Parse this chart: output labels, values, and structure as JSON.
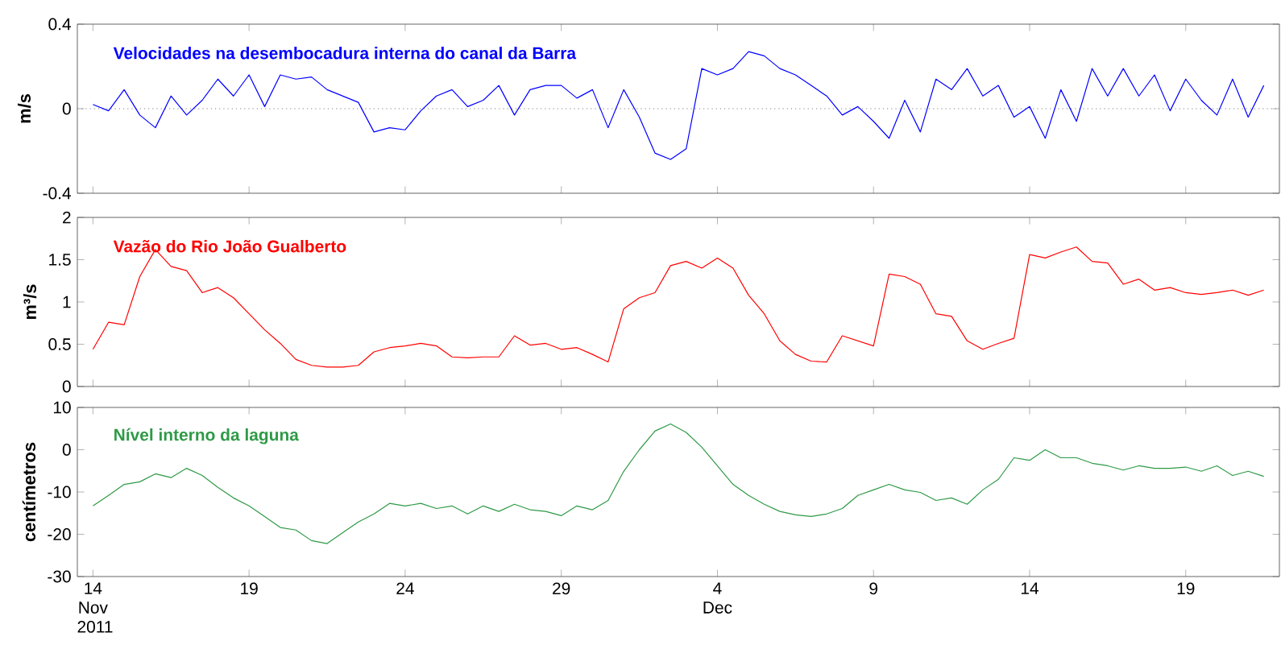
{
  "chart_data": [
    {
      "type": "line",
      "title": "Velocidades na desembocadura interna do canal da Barra",
      "ylabel": "m/s",
      "tick_labels": "y",
      "xlim": [
        "2011-11-13T12:00",
        "2011-12-22T00:00"
      ],
      "ylim": [
        -0.4,
        0.4
      ],
      "yticks": [
        -0.4,
        0,
        0.4
      ],
      "xticks": [
        {
          "value": "2011-11-14",
          "label": null
        },
        {
          "value": "2011-11-19",
          "label": null
        },
        {
          "value": "2011-11-24",
          "label": null
        },
        {
          "value": "2011-11-29",
          "label": null
        },
        {
          "value": "2011-12-04",
          "label": null
        },
        {
          "value": "2011-12-09",
          "label": null
        },
        {
          "value": "2011-12-14",
          "label": null
        },
        {
          "value": "2011-12-19",
          "label": null
        }
      ],
      "ref_lines": [
        {
          "axis": "y",
          "value": 0,
          "color": "#808080",
          "line_style": "dotted"
        }
      ],
      "x": [
        "2011-11-14T00:00",
        "2011-11-14T12:00",
        "2011-11-15T00:00",
        "2011-11-15T12:00",
        "2011-11-16T00:00",
        "2011-11-16T12:00",
        "2011-11-17T00:00",
        "2011-11-17T12:00",
        "2011-11-18T00:00",
        "2011-11-18T12:00",
        "2011-11-19T00:00",
        "2011-11-19T12:00",
        "2011-11-20T00:00",
        "2011-11-20T12:00",
        "2011-11-21T00:00",
        "2011-11-21T12:00",
        "2011-11-22T00:00",
        "2011-11-22T12:00",
        "2011-11-23T00:00",
        "2011-11-23T12:00",
        "2011-11-24T00:00",
        "2011-11-24T12:00",
        "2011-11-25T00:00",
        "2011-11-25T12:00",
        "2011-11-26T00:00",
        "2011-11-26T12:00",
        "2011-11-27T00:00",
        "2011-11-27T12:00",
        "2011-11-28T00:00",
        "2011-11-28T12:00",
        "2011-11-29T00:00",
        "2011-11-29T12:00",
        "2011-11-30T00:00",
        "2011-11-30T12:00",
        "2011-12-01T00:00",
        "2011-12-01T12:00",
        "2011-12-02T00:00",
        "2011-12-02T12:00",
        "2011-12-03T00:00",
        "2011-12-03T12:00",
        "2011-12-04T00:00",
        "2011-12-04T12:00",
        "2011-12-05T00:00",
        "2011-12-05T12:00",
        "2011-12-06T00:00",
        "2011-12-06T12:00",
        "2011-12-07T00:00",
        "2011-12-07T12:00",
        "2011-12-08T00:00",
        "2011-12-08T12:00",
        "2011-12-09T00:00",
        "2011-12-09T12:00",
        "2011-12-10T00:00",
        "2011-12-10T12:00",
        "2011-12-11T00:00",
        "2011-12-11T12:00",
        "2011-12-12T00:00",
        "2011-12-12T12:00",
        "2011-12-13T00:00",
        "2011-12-13T12:00",
        "2011-12-14T00:00",
        "2011-12-14T12:00",
        "2011-12-15T00:00",
        "2011-12-15T12:00",
        "2011-12-16T00:00",
        "2011-12-16T12:00",
        "2011-12-17T00:00",
        "2011-12-17T12:00",
        "2011-12-18T00:00",
        "2011-12-18T12:00",
        "2011-12-19T00:00",
        "2011-12-19T12:00",
        "2011-12-20T00:00",
        "2011-12-20T12:00",
        "2011-12-21T00:00",
        "2011-12-21T12:00"
      ],
      "series": [
        {
          "color": "#0000ff",
          "values": [
            0.02,
            -0.01,
            0.09,
            -0.03,
            -0.09,
            0.06,
            -0.03,
            0.04,
            0.14,
            0.06,
            0.16,
            0.01,
            0.16,
            0.14,
            0.15,
            0.09,
            0.06,
            0.03,
            -0.11,
            -0.09,
            -0.1,
            -0.01,
            0.06,
            0.09,
            0.01,
            0.04,
            0.11,
            -0.03,
            0.09,
            0.11,
            0.11,
            0.05,
            0.09,
            -0.09,
            0.09,
            -0.04,
            -0.21,
            -0.24,
            -0.19,
            0.19,
            0.16,
            0.19,
            0.27,
            0.25,
            0.19,
            0.16,
            0.11,
            0.06,
            -0.03,
            0.01,
            -0.06,
            -0.14,
            0.04,
            -0.11,
            0.14,
            0.09,
            0.19,
            0.06,
            0.11,
            -0.04,
            0.01,
            -0.14,
            0.09,
            -0.06,
            0.19,
            0.06,
            0.19,
            0.06,
            0.16,
            -0.01,
            0.14,
            0.04,
            -0.03,
            0.14,
            -0.04,
            0.11
          ]
        }
      ]
    },
    {
      "type": "line",
      "title": "Vazão do Rio João Gualberto",
      "ylabel": "m³/s",
      "tick_labels": "y",
      "xlim": [
        "2011-11-13T12:00",
        "2011-12-22T00:00"
      ],
      "ylim": [
        0,
        2
      ],
      "yticks": [
        0,
        0.5,
        1,
        1.5,
        2
      ],
      "xticks": [
        {
          "value": "2011-11-14",
          "label": null
        },
        {
          "value": "2011-11-19",
          "label": null
        },
        {
          "value": "2011-11-24",
          "label": null
        },
        {
          "value": "2011-11-29",
          "label": null
        },
        {
          "value": "2011-12-04",
          "label": null
        },
        {
          "value": "2011-12-09",
          "label": null
        },
        {
          "value": "2011-12-14",
          "label": null
        },
        {
          "value": "2011-12-19",
          "label": null
        }
      ],
      "x": [
        "2011-11-14T00:00",
        "2011-11-14T12:00",
        "2011-11-15T00:00",
        "2011-11-15T12:00",
        "2011-11-16T00:00",
        "2011-11-16T12:00",
        "2011-11-17T00:00",
        "2011-11-17T12:00",
        "2011-11-18T00:00",
        "2011-11-18T12:00",
        "2011-11-19T00:00",
        "2011-11-19T12:00",
        "2011-11-20T00:00",
        "2011-11-20T12:00",
        "2011-11-21T00:00",
        "2011-11-21T12:00",
        "2011-11-22T00:00",
        "2011-11-22T12:00",
        "2011-11-23T00:00",
        "2011-11-23T12:00",
        "2011-11-24T00:00",
        "2011-11-24T12:00",
        "2011-11-25T00:00",
        "2011-11-25T12:00",
        "2011-11-26T00:00",
        "2011-11-26T12:00",
        "2011-11-27T00:00",
        "2011-11-27T12:00",
        "2011-11-28T00:00",
        "2011-11-28T12:00",
        "2011-11-29T00:00",
        "2011-11-29T12:00",
        "2011-11-30T00:00",
        "2011-11-30T12:00",
        "2011-12-01T00:00",
        "2011-12-01T12:00",
        "2011-12-02T00:00",
        "2011-12-02T12:00",
        "2011-12-03T00:00",
        "2011-12-03T12:00",
        "2011-12-04T00:00",
        "2011-12-04T12:00",
        "2011-12-05T00:00",
        "2011-12-05T12:00",
        "2011-12-06T00:00",
        "2011-12-06T12:00",
        "2011-12-07T00:00",
        "2011-12-07T12:00",
        "2011-12-08T00:00",
        "2011-12-08T12:00",
        "2011-12-09T00:00",
        "2011-12-09T12:00",
        "2011-12-10T00:00",
        "2011-12-10T12:00",
        "2011-12-11T00:00",
        "2011-12-11T12:00",
        "2011-12-12T00:00",
        "2011-12-12T12:00",
        "2011-12-13T00:00",
        "2011-12-13T12:00",
        "2011-12-14T00:00",
        "2011-12-14T12:00",
        "2011-12-15T00:00",
        "2011-12-15T12:00",
        "2011-12-16T00:00",
        "2011-12-16T12:00",
        "2011-12-17T00:00",
        "2011-12-17T12:00",
        "2011-12-18T00:00",
        "2011-12-18T12:00",
        "2011-12-19T00:00",
        "2011-12-19T12:00",
        "2011-12-20T00:00",
        "2011-12-20T12:00",
        "2011-12-21T00:00",
        "2011-12-21T12:00"
      ],
      "series": [
        {
          "color": "#ff0000",
          "values": [
            0.44,
            0.76,
            0.73,
            1.3,
            1.62,
            1.42,
            1.37,
            1.11,
            1.17,
            1.05,
            0.86,
            0.67,
            0.51,
            0.32,
            0.25,
            0.23,
            0.23,
            0.25,
            0.41,
            0.46,
            0.48,
            0.51,
            0.48,
            0.35,
            0.34,
            0.35,
            0.35,
            0.6,
            0.49,
            0.51,
            0.44,
            0.46,
            0.38,
            0.29,
            0.92,
            1.05,
            1.11,
            1.43,
            1.48,
            1.4,
            1.52,
            1.4,
            1.08,
            0.86,
            0.54,
            0.38,
            0.3,
            0.29,
            0.6,
            0.54,
            0.48,
            1.33,
            1.3,
            1.21,
            0.86,
            0.83,
            0.54,
            0.44,
            0.51,
            0.57,
            1.56,
            1.52,
            1.59,
            1.65,
            1.48,
            1.46,
            1.21,
            1.27,
            1.14,
            1.17,
            1.11,
            1.09,
            1.11,
            1.14,
            1.08,
            1.14
          ]
        }
      ]
    },
    {
      "type": "line",
      "title": "Nível interno da laguna",
      "ylabel": "centímetros",
      "xlim": [
        "2011-11-13T12:00",
        "2011-12-22T00:00"
      ],
      "ylim": [
        -30,
        10
      ],
      "yticks": [
        -30,
        -20,
        -10,
        0,
        10
      ],
      "xticks": [
        {
          "value": "2011-11-14",
          "label": "14 Nov 2011"
        },
        {
          "value": "2011-11-19",
          "label": "19"
        },
        {
          "value": "2011-11-24",
          "label": "24"
        },
        {
          "value": "2011-11-29",
          "label": "29"
        },
        {
          "value": "2011-12-04",
          "label": "4 Dec"
        },
        {
          "value": "2011-12-09",
          "label": "9"
        },
        {
          "value": "2011-12-14",
          "label": "14"
        },
        {
          "value": "2011-12-19",
          "label": "19"
        }
      ],
      "x": [
        "2011-11-14T00:00",
        "2011-11-14T12:00",
        "2011-11-15T00:00",
        "2011-11-15T12:00",
        "2011-11-16T00:00",
        "2011-11-16T12:00",
        "2011-11-17T00:00",
        "2011-11-17T12:00",
        "2011-11-18T00:00",
        "2011-11-18T12:00",
        "2011-11-19T00:00",
        "2011-11-19T12:00",
        "2011-11-20T00:00",
        "2011-11-20T12:00",
        "2011-11-21T00:00",
        "2011-11-21T12:00",
        "2011-11-22T00:00",
        "2011-11-22T12:00",
        "2011-11-23T00:00",
        "2011-11-23T12:00",
        "2011-11-24T00:00",
        "2011-11-24T12:00",
        "2011-11-25T00:00",
        "2011-11-25T12:00",
        "2011-11-26T00:00",
        "2011-11-26T12:00",
        "2011-11-27T00:00",
        "2011-11-27T12:00",
        "2011-11-28T00:00",
        "2011-11-28T12:00",
        "2011-11-29T00:00",
        "2011-11-29T12:00",
        "2011-11-30T00:00",
        "2011-11-30T12:00",
        "2011-12-01T00:00",
        "2011-12-01T12:00",
        "2011-12-02T00:00",
        "2011-12-02T12:00",
        "2011-12-03T00:00",
        "2011-12-03T12:00",
        "2011-12-04T00:00",
        "2011-12-04T12:00",
        "2011-12-05T00:00",
        "2011-12-05T12:00",
        "2011-12-06T00:00",
        "2011-12-06T12:00",
        "2011-12-07T00:00",
        "2011-12-07T12:00",
        "2011-12-08T00:00",
        "2011-12-08T12:00",
        "2011-12-09T00:00",
        "2011-12-09T12:00",
        "2011-12-10T00:00",
        "2011-12-10T12:00",
        "2011-12-11T00:00",
        "2011-12-11T12:00",
        "2011-12-12T00:00",
        "2011-12-12T12:00",
        "2011-12-13T00:00",
        "2011-12-13T12:00",
        "2011-12-14T00:00",
        "2011-12-14T12:00",
        "2011-12-15T00:00",
        "2011-12-15T12:00",
        "2011-12-16T00:00",
        "2011-12-16T12:00",
        "2011-12-17T00:00",
        "2011-12-17T12:00",
        "2011-12-18T00:00",
        "2011-12-18T12:00",
        "2011-12-19T00:00",
        "2011-12-19T12:00",
        "2011-12-20T00:00",
        "2011-12-20T12:00",
        "2011-12-21T00:00",
        "2011-12-21T12:00"
      ],
      "series": [
        {
          "color": "#2e9a46",
          "values": [
            -13.3,
            -10.8,
            -8.2,
            -7.6,
            -5.7,
            -6.6,
            -4.4,
            -6.1,
            -8.9,
            -11.4,
            -13.3,
            -15.8,
            -18.4,
            -19.0,
            -21.5,
            -22.2,
            -19.6,
            -17.1,
            -15.2,
            -12.7,
            -13.3,
            -12.7,
            -13.9,
            -13.3,
            -15.2,
            -13.3,
            -14.6,
            -12.9,
            -14.2,
            -14.6,
            -15.6,
            -13.3,
            -14.2,
            -12.0,
            -5.1,
            0,
            4.4,
            6.1,
            4.1,
            0.6,
            -3.8,
            -8.2,
            -10.8,
            -12.9,
            -14.6,
            -15.4,
            -15.8,
            -15.2,
            -13.9,
            -10.8,
            -9.5,
            -8.2,
            -9.5,
            -10.1,
            -12.0,
            -11.4,
            -12.9,
            -9.5,
            -7.0,
            -1.9,
            -2.5,
            0,
            -1.9,
            -1.9,
            -3.2,
            -3.8,
            -4.8,
            -3.8,
            -4.4,
            -4.4,
            -4.1,
            -5.1,
            -3.8,
            -6.1,
            -5.1,
            -6.3
          ]
        }
      ]
    }
  ]
}
